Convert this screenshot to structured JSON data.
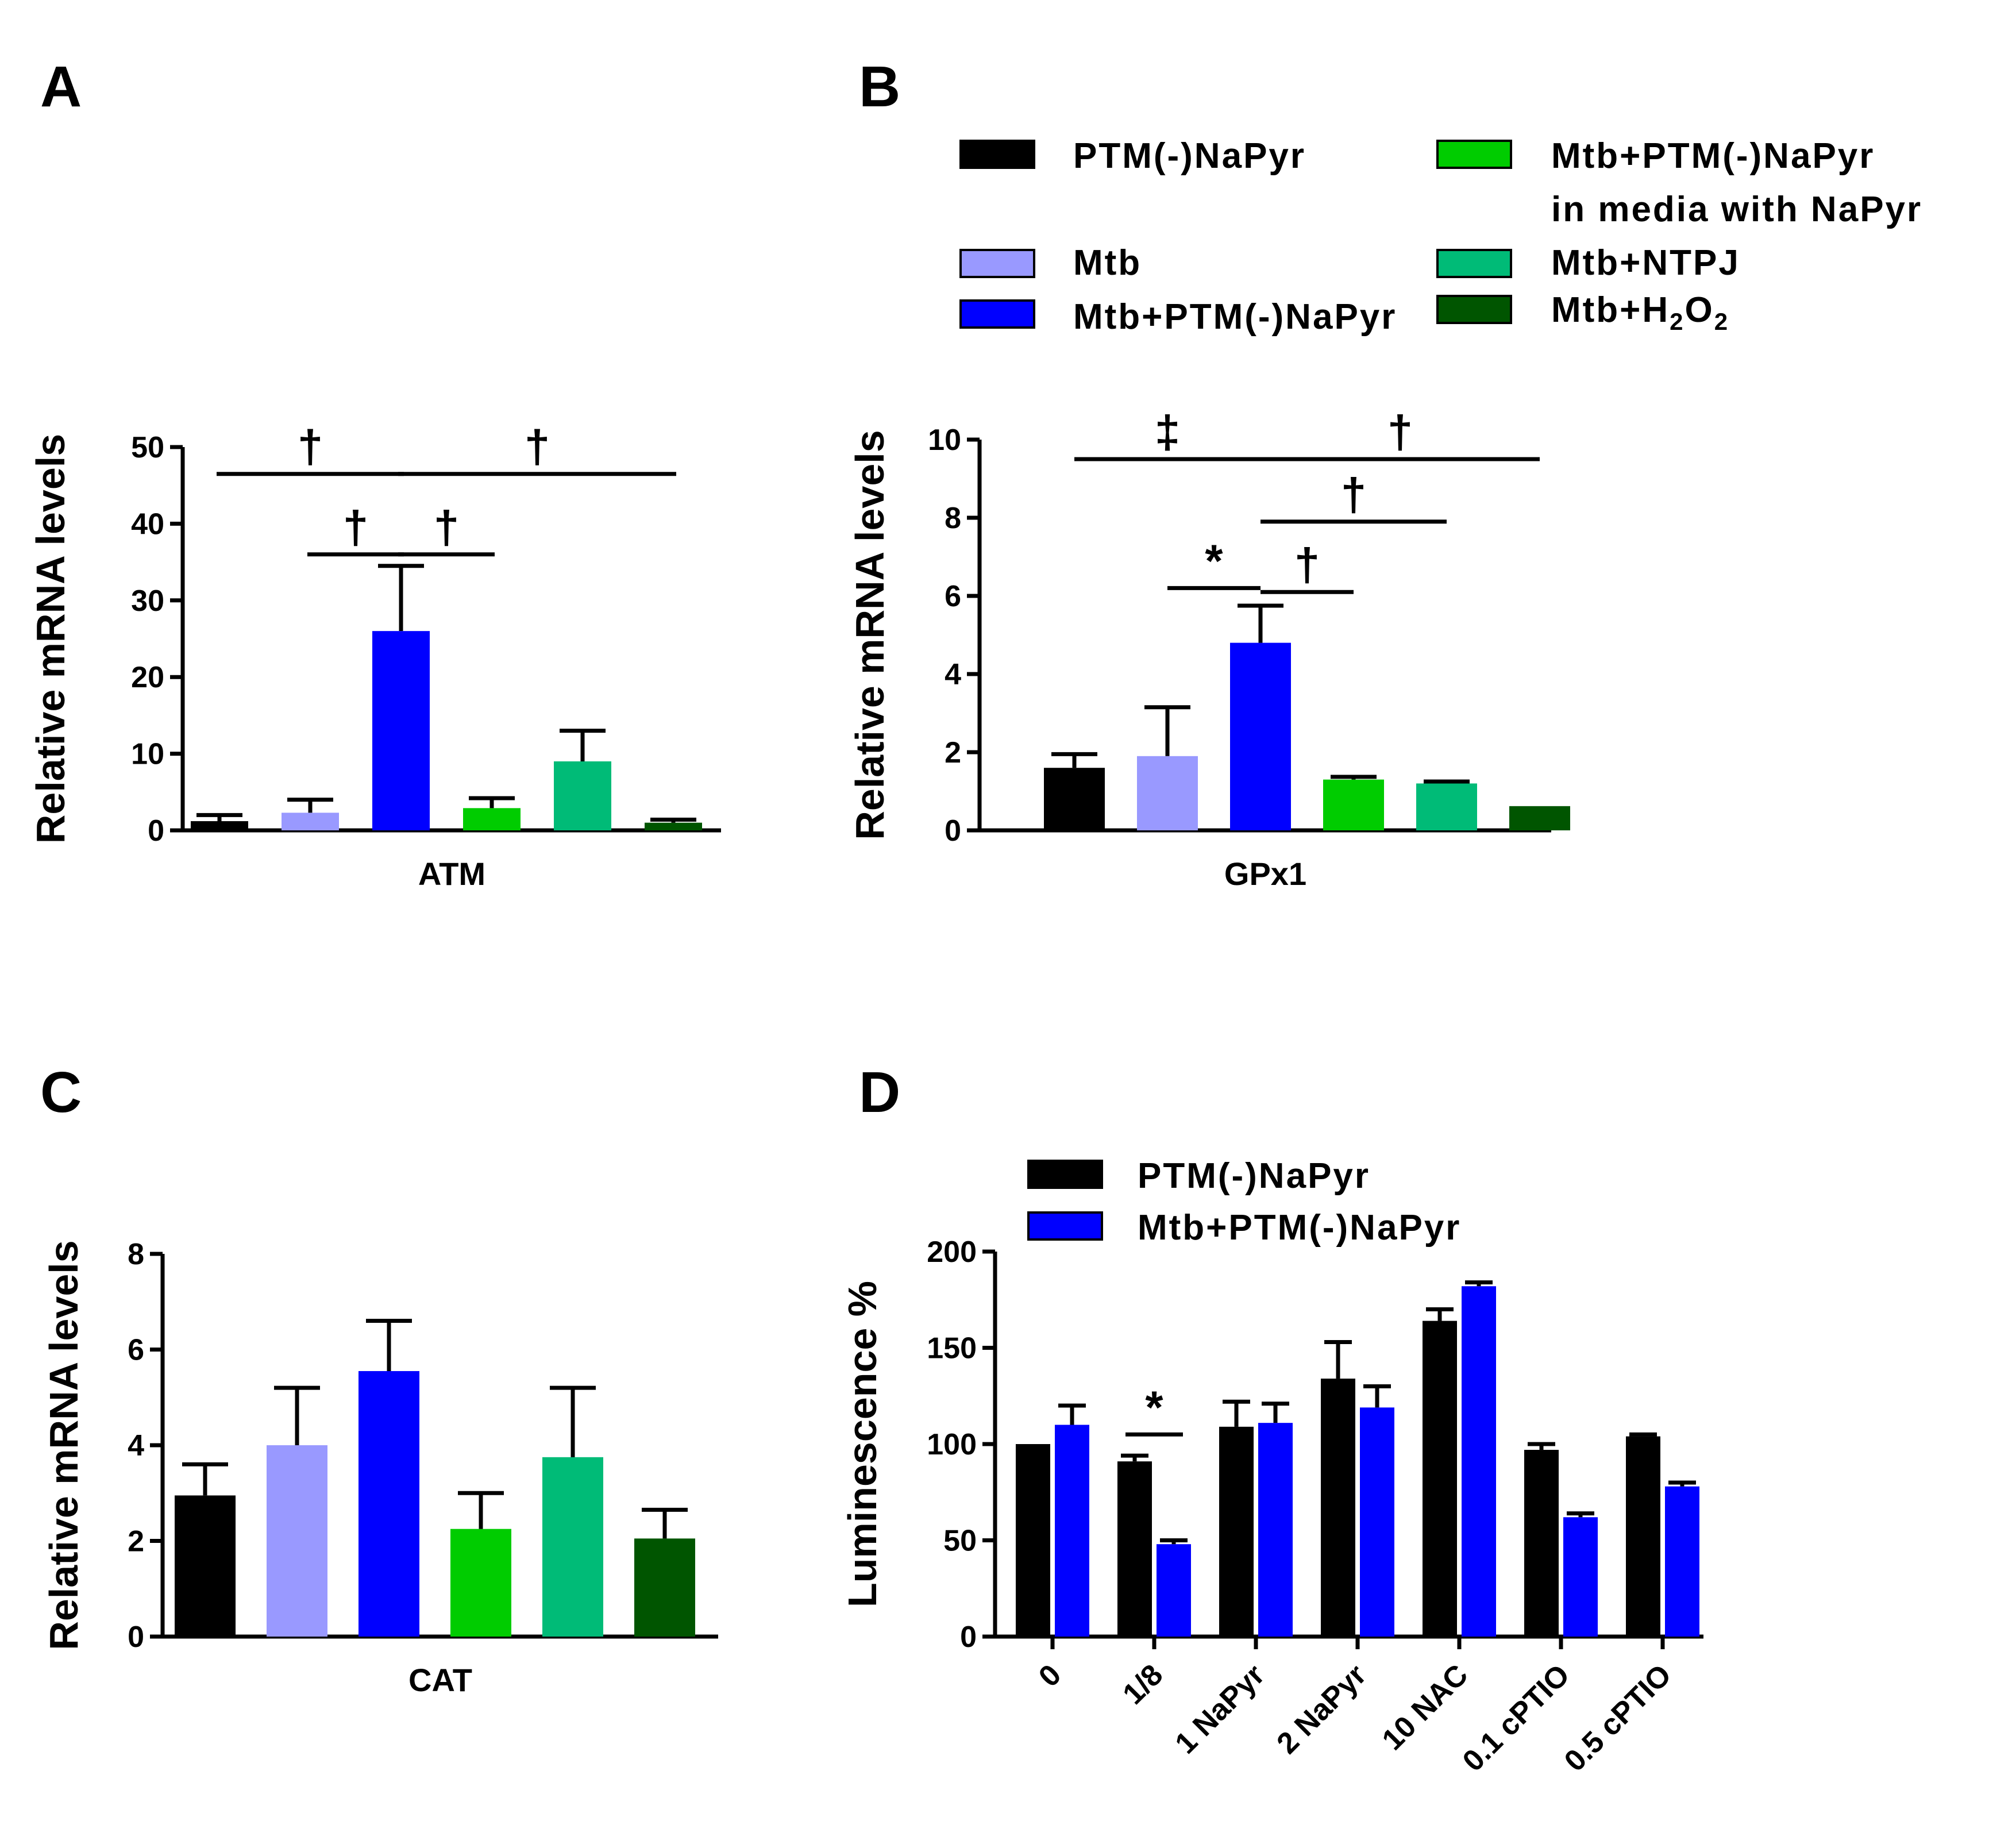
{
  "colors": {
    "PTM(-)NaPyr": "#000000",
    "Mtb": "#9999ff",
    "Mtb+PTM(-)NaPyr": "#0000ff",
    "Mtb+PTM(-)NaPyr in media with NaPyr": "#00cc00",
    "Mtb+NTPJ": "#00bb77",
    "Mtb+H2O2": "#005500"
  },
  "legend_top": {
    "items": [
      {
        "key": "PTM(-)NaPyr",
        "lines": [
          "PTM(-)NaPyr"
        ]
      },
      {
        "key": "Mtb",
        "lines": [
          "Mtb"
        ]
      },
      {
        "key": "Mtb+PTM(-)NaPyr",
        "lines": [
          "Mtb+PTM(-)NaPyr"
        ]
      },
      {
        "key": "Mtb+PTM(-)NaPyr in media with NaPyr",
        "lines": [
          "Mtb+PTM(-)NaPyr",
          "in media with NaPyr"
        ]
      },
      {
        "key": "Mtb+NTPJ",
        "lines": [
          "Mtb+NTPJ"
        ]
      },
      {
        "key": "Mtb+H2O2",
        "lines": [
          "Mtb+H",
          "2",
          "O",
          "2"
        ]
      }
    ]
  },
  "legend_d": {
    "items": [
      {
        "key": "PTM(-)NaPyr",
        "label": "PTM(-)NaPyr"
      },
      {
        "key": "Mtb+PTM(-)NaPyr",
        "label": "Mtb+PTM(-)NaPyr"
      }
    ]
  },
  "chart_data": [
    {
      "panel": "A",
      "type": "bar",
      "xlabel": "ATM",
      "ylabel": "Relative mRNA levels",
      "ylim": [
        0,
        50
      ],
      "yticks": [
        0,
        10,
        20,
        30,
        40,
        50
      ],
      "series": [
        {
          "name": "PTM(-)NaPyr",
          "value": 1.2,
          "error": 0.8
        },
        {
          "name": "Mtb",
          "value": 2.3,
          "error": 1.7
        },
        {
          "name": "Mtb+PTM(-)NaPyr",
          "value": 26,
          "error": 8.5
        },
        {
          "name": "Mtb+PTM(-)NaPyr in media with NaPyr",
          "value": 2.9,
          "error": 1.3
        },
        {
          "name": "Mtb+NTPJ",
          "value": 9,
          "error": 4
        },
        {
          "name": "Mtb+H2O2",
          "value": 1.0,
          "error": 0.4
        }
      ],
      "annotations": [
        {
          "from": 0,
          "to": 2,
          "level": 46.5,
          "symbol": "†"
        },
        {
          "from": 2,
          "to": 5,
          "level": 46.5,
          "symbol": "†"
        },
        {
          "from": 1,
          "to": 2,
          "level": 36,
          "symbol": "†"
        },
        {
          "from": 2,
          "to": 3,
          "level": 36,
          "symbol": "†"
        }
      ]
    },
    {
      "panel": "B",
      "type": "bar",
      "xlabel": "GPx1",
      "ylabel": "Relative mRNA levels",
      "ylim": [
        0,
        10
      ],
      "yticks": [
        0,
        2,
        4,
        6,
        8,
        10
      ],
      "series": [
        {
          "name": "PTM(-)NaPyr",
          "value": 1.6,
          "error": 0.35
        },
        {
          "name": "Mtb",
          "value": 1.9,
          "error": 1.25
        },
        {
          "name": "Mtb+PTM(-)NaPyr",
          "value": 4.8,
          "error": 0.95
        },
        {
          "name": "Mtb+PTM(-)NaPyr in media with NaPyr",
          "value": 1.3,
          "error": 0.07
        },
        {
          "name": "Mtb+NTPJ",
          "value": 1.2,
          "error": 0.05
        },
        {
          "name": "Mtb+H2O2",
          "value": 0.62,
          "error": 0
        }
      ],
      "annotations": [
        {
          "from": 0,
          "to": 2,
          "level": 9.5,
          "symbol": "‡"
        },
        {
          "from": 2,
          "to": 5,
          "level": 9.5,
          "symbol": "†"
        },
        {
          "from": 2,
          "to": 4,
          "level": 7.9,
          "symbol": "†"
        },
        {
          "from": 2,
          "to": 3,
          "level": 6.1,
          "symbol": "†"
        },
        {
          "from": 1,
          "to": 2,
          "level": 6.2,
          "symbol": "*"
        }
      ]
    },
    {
      "panel": "C",
      "type": "bar",
      "xlabel": "CAT",
      "ylabel": "Relative mRNA levels",
      "ylim": [
        0,
        8
      ],
      "yticks": [
        0,
        2,
        4,
        6,
        8
      ],
      "series": [
        {
          "name": "PTM(-)NaPyr",
          "value": 2.95,
          "error": 0.65
        },
        {
          "name": "Mtb",
          "value": 4.0,
          "error": 1.2
        },
        {
          "name": "Mtb+PTM(-)NaPyr",
          "value": 5.55,
          "error": 1.05
        },
        {
          "name": "Mtb+PTM(-)NaPyr in media with NaPyr",
          "value": 2.25,
          "error": 0.75
        },
        {
          "name": "Mtb+NTPJ",
          "value": 3.75,
          "error": 1.45
        },
        {
          "name": "Mtb+H2O2",
          "value": 2.05,
          "error": 0.6
        }
      ],
      "annotations": []
    },
    {
      "panel": "D",
      "type": "bar",
      "ylabel": "Luminescence %",
      "ylim": [
        0,
        200
      ],
      "yticks": [
        0,
        50,
        100,
        150,
        200
      ],
      "categories": [
        "0",
        "1/8",
        "1 NaPyr",
        "2 NaPyr",
        "10 NAC",
        "0.1 cPTIO",
        "0.5 cPTIO"
      ],
      "series": [
        {
          "name": "PTM(-)NaPyr",
          "values": [
            100,
            91,
            109,
            134,
            164,
            97,
            104
          ],
          "errors": [
            0,
            3,
            13,
            19,
            6,
            3,
            1
          ]
        },
        {
          "name": "Mtb+PTM(-)NaPyr",
          "values": [
            110,
            48,
            111,
            119,
            182,
            62,
            78
          ],
          "errors": [
            10,
            2,
            10,
            11,
            2,
            2,
            2
          ]
        }
      ],
      "annotations": [
        {
          "category": 1,
          "level": 105,
          "symbol": "*"
        }
      ]
    }
  ]
}
